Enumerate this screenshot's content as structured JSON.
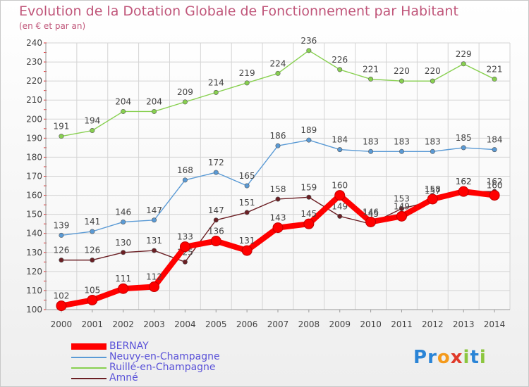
{
  "chart_data": {
    "type": "line",
    "title": "Evolution de la Dotation Globale de Fonctionnement par Habitant",
    "subtitle": "(en € et par an)",
    "x": [
      "2000",
      "2001",
      "2002",
      "2003",
      "2004",
      "2005",
      "2006",
      "2007",
      "2008",
      "2009",
      "2010",
      "2011",
      "2012",
      "2013",
      "2014"
    ],
    "ylim": [
      100,
      240
    ],
    "yticks": [
      100,
      110,
      120,
      130,
      140,
      150,
      160,
      170,
      180,
      190,
      200,
      210,
      220,
      230,
      240
    ],
    "grid": true,
    "legend_position": "bottom-left",
    "series": [
      {
        "name": "BERNAY",
        "color": "#ff0000",
        "values": [
          102,
          105,
          111,
          112,
          133,
          136,
          131,
          143,
          145,
          160,
          146,
          149,
          158,
          162,
          160
        ]
      },
      {
        "name": "Neuvy-en-Champagne",
        "color": "#5a9ad5",
        "values": [
          139,
          141,
          146,
          147,
          168,
          172,
          165,
          186,
          189,
          184,
          183,
          183,
          183,
          185,
          184
        ]
      },
      {
        "name": "Ruillé-en-Champagne",
        "color": "#88d050",
        "values": [
          191,
          194,
          204,
          204,
          209,
          214,
          219,
          224,
          236,
          226,
          221,
          220,
          220,
          229,
          221
        ]
      },
      {
        "name": "Amné",
        "color": "#6b1f24",
        "values": [
          126,
          126,
          130,
          131,
          125,
          147,
          151,
          158,
          159,
          149,
          145,
          153,
          157,
          162,
          162
        ]
      }
    ]
  },
  "logo": {
    "text": "Proxiti",
    "letters": [
      "P",
      "r",
      "o",
      "x",
      "i",
      "t",
      "i"
    ],
    "colors": [
      "#2a84d6",
      "#2a84d6",
      "#f49a1c",
      "#e03a2a",
      "#8cc63f",
      "#2a84d6",
      "#8cc63f"
    ]
  }
}
